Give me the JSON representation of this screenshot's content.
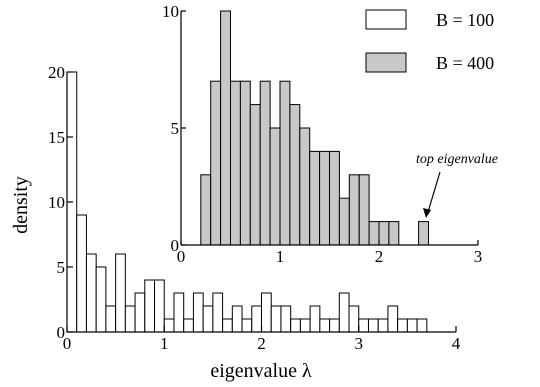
{
  "colors": {
    "b100_fill": "#ffffff",
    "b400_fill": "#c8c8c8",
    "stroke": "#000000"
  },
  "chart_data": [
    {
      "id": "main",
      "type": "bar",
      "title": "",
      "xlabel": "eigenvalue λ",
      "ylabel": "density",
      "xlim": [
        0,
        4
      ],
      "ylim": [
        0,
        20
      ],
      "xticks": [
        "0",
        "1",
        "2",
        "3",
        "4"
      ],
      "yticks": [
        "0",
        "5",
        "10",
        "15",
        "20"
      ],
      "bin_width": 0.1,
      "series": [
        {
          "name": "B = 100",
          "bin_starts": [
            0.0,
            0.1,
            0.2,
            0.3,
            0.4,
            0.5,
            0.6,
            0.7,
            0.8,
            0.9,
            1.0,
            1.1,
            1.2,
            1.3,
            1.4,
            1.5,
            1.6,
            1.7,
            1.8,
            1.9,
            2.0,
            2.1,
            2.2,
            2.3,
            2.4,
            2.5,
            2.6,
            2.7,
            2.8,
            2.9,
            3.0,
            3.1,
            3.2,
            3.3,
            3.4,
            3.5,
            3.6
          ],
          "values": [
            20,
            9,
            6,
            5,
            2,
            6,
            2,
            3,
            4,
            4,
            1,
            3,
            1,
            3,
            2,
            3,
            1,
            2,
            1,
            2,
            3,
            2,
            2,
            1,
            1,
            2,
            1,
            1,
            3,
            2,
            1,
            1,
            1,
            2,
            1,
            1,
            1
          ]
        }
      ]
    },
    {
      "id": "inset",
      "type": "bar",
      "xlim": [
        0,
        3
      ],
      "ylim": [
        0,
        10
      ],
      "xticks": [
        "0",
        "1",
        "2",
        "3"
      ],
      "yticks": [
        "0",
        "5",
        "10"
      ],
      "bin_width": 0.1,
      "series": [
        {
          "name": "B = 400",
          "bin_starts": [
            0.2,
            0.3,
            0.4,
            0.5,
            0.6,
            0.7,
            0.8,
            0.9,
            1.0,
            1.1,
            1.2,
            1.3,
            1.4,
            1.5,
            1.6,
            1.7,
            1.8,
            1.9,
            2.0,
            2.1,
            2.4
          ],
          "values": [
            3,
            7,
            10,
            7,
            7,
            6,
            7,
            5,
            7,
            6,
            5,
            4,
            4,
            4,
            2,
            3,
            3,
            1,
            1,
            1,
            1
          ]
        }
      ],
      "annotation": "top eigenvalue"
    }
  ],
  "legend": [
    {
      "label": "B = 100"
    },
    {
      "label": "B = 400"
    }
  ]
}
